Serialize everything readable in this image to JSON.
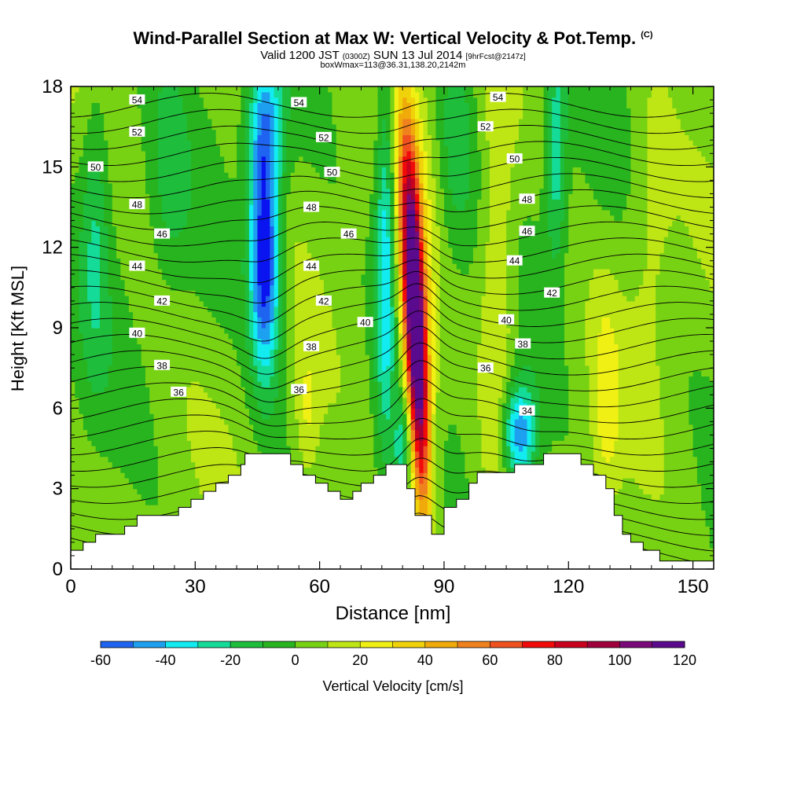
{
  "header": {
    "title": "Wind-Parallel Section at Max W: Vertical Velocity & Pot.Temp.",
    "title_mark": "(C)",
    "valid_prefix": "Valid 1200 JST",
    "valid_utc": "(0300Z)",
    "valid_date": "SUN 13 Jul 2014",
    "valid_fcst": "[9hrFcst@2147z]",
    "boxinfo": "boxWmax=113@36.31,138.20,2142m"
  },
  "colorbar": {
    "label": "Vertical Velocity [cm/s]",
    "ticks": [
      "-60",
      "-40",
      "-20",
      "0",
      "20",
      "40",
      "60",
      "80",
      "100",
      "120"
    ],
    "colors": [
      "#0a14f0",
      "#1e64f0",
      "#1ea0f0",
      "#12ecf0",
      "#14dc98",
      "#1ebe3c",
      "#28b41e",
      "#78d214",
      "#bee614",
      "#f0f014",
      "#f0d20a",
      "#f0aa0a",
      "#f0821e",
      "#f0501e",
      "#f00a0a",
      "#c8001e",
      "#a0003c",
      "#7a0a78",
      "#5a0a8c"
    ]
  },
  "chart_data": {
    "type": "heatmap",
    "title": "Wind-Parallel Section at Max W: Vertical Velocity & Pot.Temp.",
    "xlabel": "Distance [nm]",
    "ylabel": "Height [Kft MSL]",
    "xlim": [
      0,
      155
    ],
    "ylim": [
      0,
      18
    ],
    "xticks": [
      "0",
      "30",
      "60",
      "90",
      "120",
      "150"
    ],
    "yticks": [
      "0",
      "3",
      "6",
      "9",
      "12",
      "15",
      "18"
    ],
    "color_range": [
      -60,
      120
    ],
    "terrain": [
      [
        0,
        0.7
      ],
      [
        3,
        1.0
      ],
      [
        6,
        1.3
      ],
      [
        13,
        1.6
      ],
      [
        16,
        2.0
      ],
      [
        26,
        2.3
      ],
      [
        29,
        2.6
      ],
      [
        32,
        2.9
      ],
      [
        35,
        3.2
      ],
      [
        38,
        3.5
      ],
      [
        41,
        3.9
      ],
      [
        42,
        4.3
      ],
      [
        51,
        4.3
      ],
      [
        53,
        3.9
      ],
      [
        56,
        3.5
      ],
      [
        59,
        3.2
      ],
      [
        62,
        2.9
      ],
      [
        65,
        2.6
      ],
      [
        68,
        2.9
      ],
      [
        70,
        3.2
      ],
      [
        73,
        3.5
      ],
      [
        76,
        3.9
      ],
      [
        81,
        3.9
      ],
      [
        81,
        3.0
      ],
      [
        83,
        2.0
      ],
      [
        85,
        2.0
      ],
      [
        87,
        1.3
      ],
      [
        90,
        1.3
      ],
      [
        90,
        2.3
      ],
      [
        93,
        2.6
      ],
      [
        96,
        3.2
      ],
      [
        98,
        3.6
      ],
      [
        107,
        3.9
      ],
      [
        110,
        3.9
      ],
      [
        114,
        4.3
      ],
      [
        120,
        4.3
      ],
      [
        123,
        3.9
      ],
      [
        126,
        3.5
      ],
      [
        129,
        3.0
      ],
      [
        131,
        2.0
      ],
      [
        133,
        1.3
      ],
      [
        135,
        1.0
      ],
      [
        138,
        0.7
      ],
      [
        142,
        0.3
      ],
      [
        155,
        0.3
      ]
    ],
    "features": [
      {
        "type": "updraft_core",
        "x": 84.5,
        "y": 9.0,
        "w_max": 113
      },
      {
        "type": "downdraft",
        "x": 47,
        "y": 11.5,
        "w_min": -60
      },
      {
        "type": "downdraft",
        "x": 76,
        "y": 12,
        "w_min": -40
      },
      {
        "type": "downdraft",
        "x": 108,
        "y": 5,
        "w_min": -40
      },
      {
        "type": "downdraft",
        "x": 117,
        "y": 16,
        "w_min": -30
      }
    ],
    "contour_field": "Potential Temperature",
    "contour_labels": [
      {
        "x": 16,
        "y": 17.5,
        "text": "54"
      },
      {
        "x": 55,
        "y": 17.4,
        "text": "54"
      },
      {
        "x": 103,
        "y": 17.6,
        "text": "54"
      },
      {
        "x": 16,
        "y": 16.3,
        "text": "52"
      },
      {
        "x": 61,
        "y": 16.1,
        "text": "52"
      },
      {
        "x": 100,
        "y": 16.5,
        "text": "52"
      },
      {
        "x": 6,
        "y": 15.0,
        "text": "50"
      },
      {
        "x": 63,
        "y": 14.8,
        "text": "50"
      },
      {
        "x": 107,
        "y": 15.3,
        "text": "50"
      },
      {
        "x": 16,
        "y": 13.6,
        "text": "48"
      },
      {
        "x": 58,
        "y": 13.5,
        "text": "48"
      },
      {
        "x": 110,
        "y": 13.8,
        "text": "48"
      },
      {
        "x": 22,
        "y": 12.5,
        "text": "46"
      },
      {
        "x": 67,
        "y": 12.5,
        "text": "46"
      },
      {
        "x": 110,
        "y": 12.6,
        "text": "46"
      },
      {
        "x": 16,
        "y": 11.3,
        "text": "44"
      },
      {
        "x": 58,
        "y": 11.3,
        "text": "44"
      },
      {
        "x": 107,
        "y": 11.5,
        "text": "44"
      },
      {
        "x": 22,
        "y": 10.0,
        "text": "42"
      },
      {
        "x": 61,
        "y": 10.0,
        "text": "42"
      },
      {
        "x": 116,
        "y": 10.3,
        "text": "42"
      },
      {
        "x": 16,
        "y": 8.8,
        "text": "40"
      },
      {
        "x": 71,
        "y": 9.2,
        "text": "40"
      },
      {
        "x": 105,
        "y": 9.3,
        "text": "40"
      },
      {
        "x": 22,
        "y": 7.6,
        "text": "38"
      },
      {
        "x": 58,
        "y": 8.3,
        "text": "38"
      },
      {
        "x": 109,
        "y": 8.4,
        "text": "38"
      },
      {
        "x": 26,
        "y": 6.6,
        "text": "36"
      },
      {
        "x": 55,
        "y": 6.7,
        "text": "36"
      },
      {
        "x": 100,
        "y": 7.5,
        "text": "36"
      },
      {
        "x": 110,
        "y": 5.9,
        "text": "34"
      }
    ]
  }
}
